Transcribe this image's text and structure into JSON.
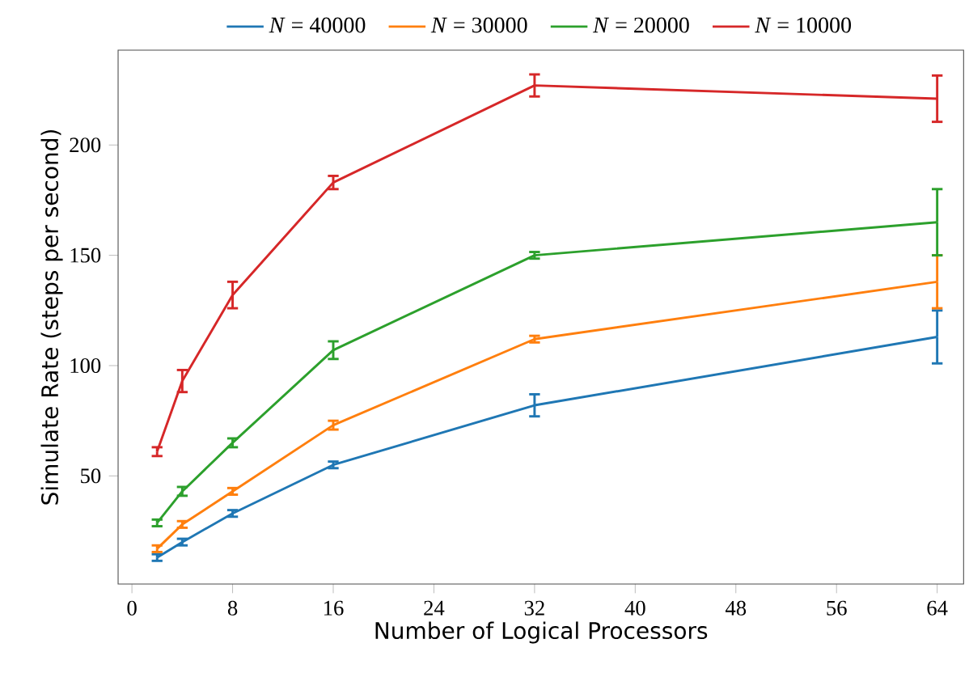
{
  "chart_data": {
    "type": "line",
    "xlabel": "Number of Logical Processors",
    "ylabel": "Simulate Rate (steps per second)",
    "x": [
      2,
      4,
      8,
      16,
      32,
      64
    ],
    "series": [
      {
        "name": "*N* = 40000",
        "color": "#1f77b4",
        "values": [
          13,
          20,
          33,
          55,
          82,
          113
        ],
        "errors": [
          1.5,
          1.5,
          1.5,
          1.5,
          5,
          12
        ]
      },
      {
        "name": "*N* = 30000",
        "color": "#ff7f0e",
        "values": [
          17,
          28,
          43,
          73,
          112,
          138
        ],
        "errors": [
          1.5,
          1.5,
          1.5,
          2,
          1.5,
          12
        ]
      },
      {
        "name": "*N* = 20000",
        "color": "#2ca02c",
        "values": [
          28.7,
          43,
          65,
          107,
          150,
          165
        ],
        "errors": [
          1.5,
          2,
          2,
          4,
          1.5,
          15
        ]
      },
      {
        "name": "*N* = 10000",
        "color": "#d62728",
        "values": [
          61,
          93,
          132,
          183,
          227,
          221
        ],
        "errors": [
          2,
          5,
          6,
          3,
          5,
          10.5
        ]
      }
    ],
    "xlim": [
      -1.1,
      66.1
    ],
    "ylim": [
      1,
      243
    ],
    "xticks": [
      0,
      8,
      16,
      24,
      32,
      40,
      48,
      56,
      64
    ],
    "yticks": [
      50,
      100,
      150,
      200
    ],
    "legend": "top",
    "marker": "none",
    "line_style": "solid"
  }
}
